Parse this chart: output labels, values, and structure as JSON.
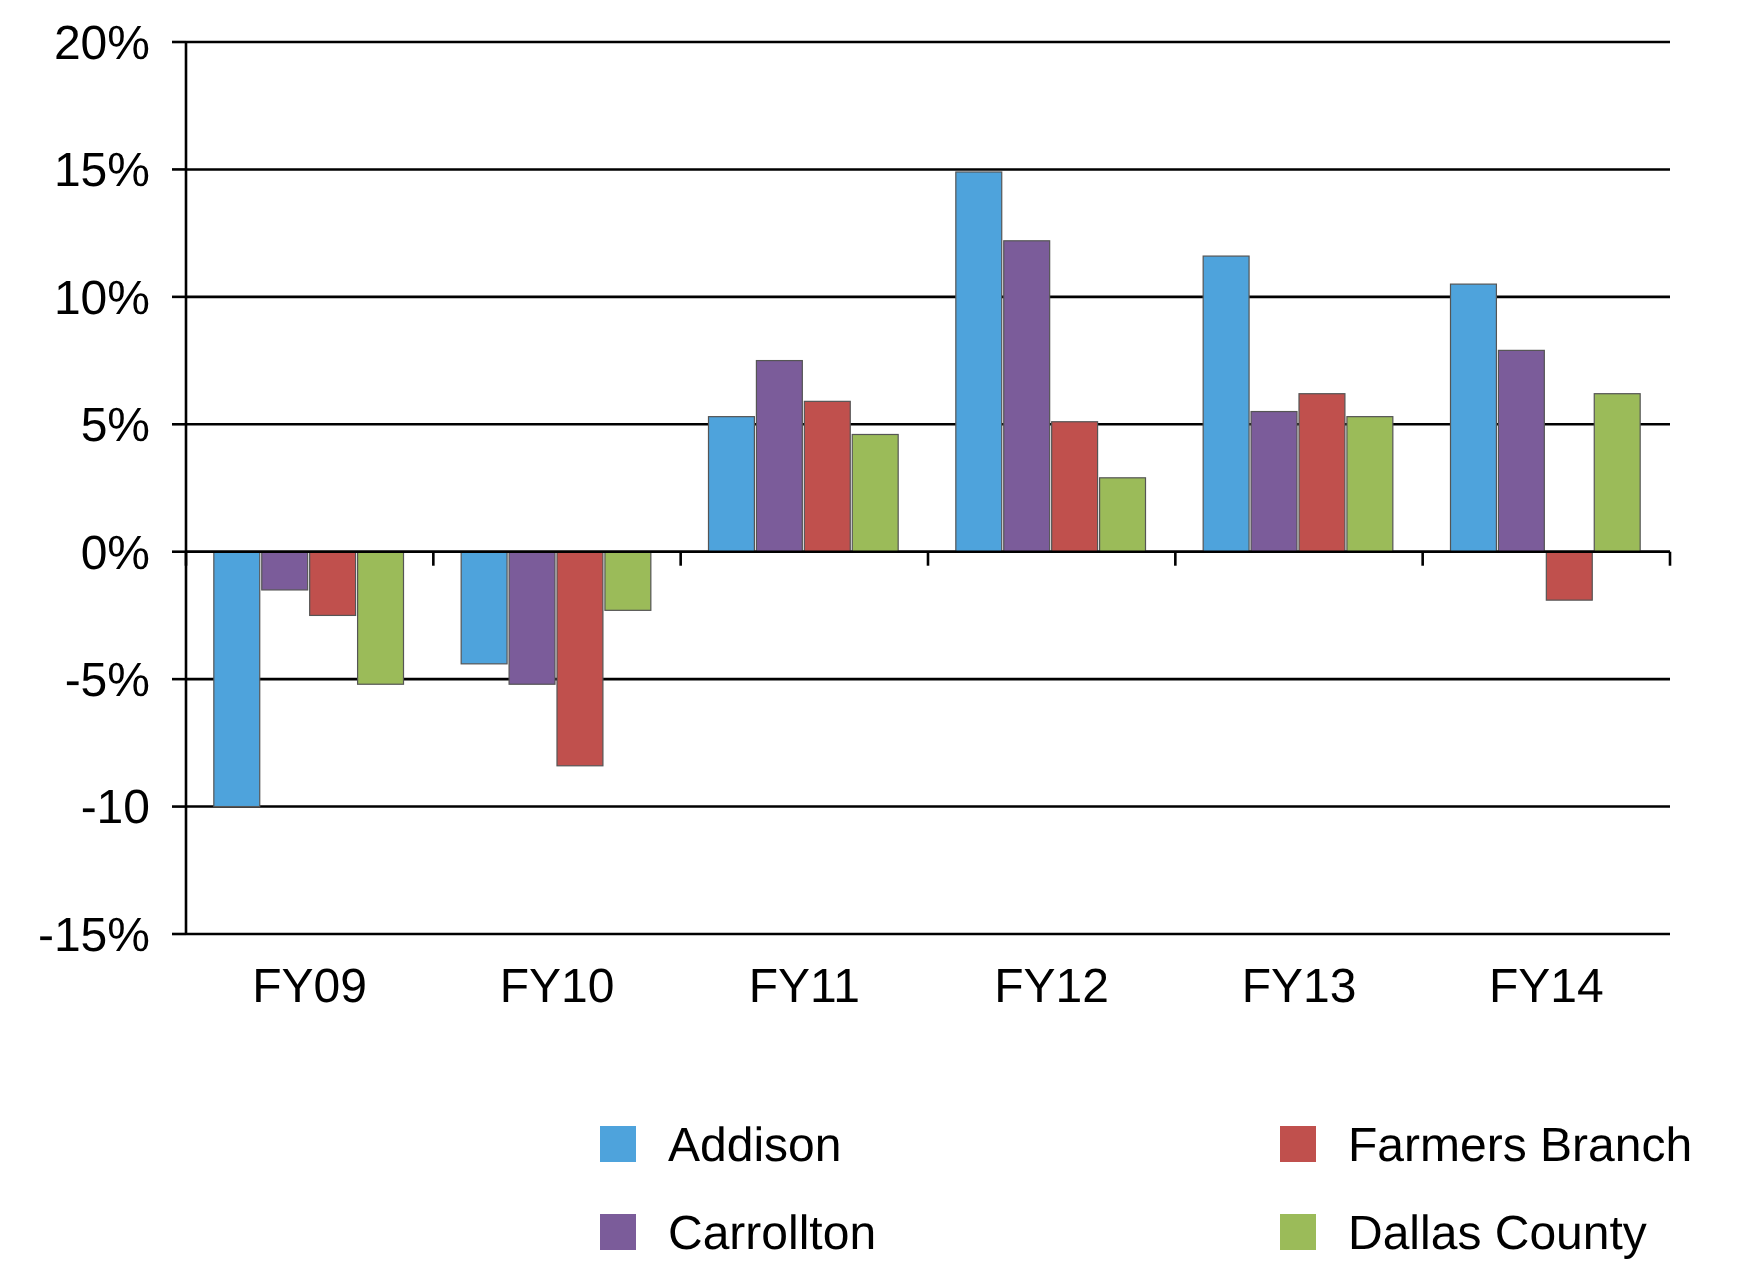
{
  "chart_data": {
    "type": "bar",
    "categories": [
      "FY09",
      "FY10",
      "FY11",
      "FY12",
      "FY13",
      "FY14"
    ],
    "series": [
      {
        "name": "Addison",
        "color": "#4ea3dc",
        "values": [
          -10,
          -4.4,
          5.3,
          14.9,
          11.6,
          10.5
        ]
      },
      {
        "name": "Carrollton",
        "color": "#7b5c9a",
        "values": [
          -1.5,
          -5.2,
          7.5,
          12.2,
          5.5,
          7.9
        ]
      },
      {
        "name": "Farmers Branch",
        "color": "#c0504d",
        "values": [
          -2.5,
          -8.4,
          5.9,
          5.1,
          6.2,
          -1.9
        ]
      },
      {
        "name": "Dallas County",
        "color": "#9bbb59",
        "values": [
          -5.2,
          -2.3,
          4.6,
          2.9,
          5.3,
          6.2
        ]
      }
    ],
    "ylim": [
      -15,
      20
    ],
    "yticks": [
      {
        "value": -15,
        "label": "-15%"
      },
      {
        "value": -10,
        "label": "-10"
      },
      {
        "value": -5,
        "label": "-5%"
      },
      {
        "value": 0,
        "label": "0%"
      },
      {
        "value": 5,
        "label": "5%"
      },
      {
        "value": 10,
        "label": "10%"
      },
      {
        "value": 15,
        "label": "15%"
      },
      {
        "value": 20,
        "label": "20%"
      }
    ],
    "grid": "y",
    "legend": "bottom"
  }
}
